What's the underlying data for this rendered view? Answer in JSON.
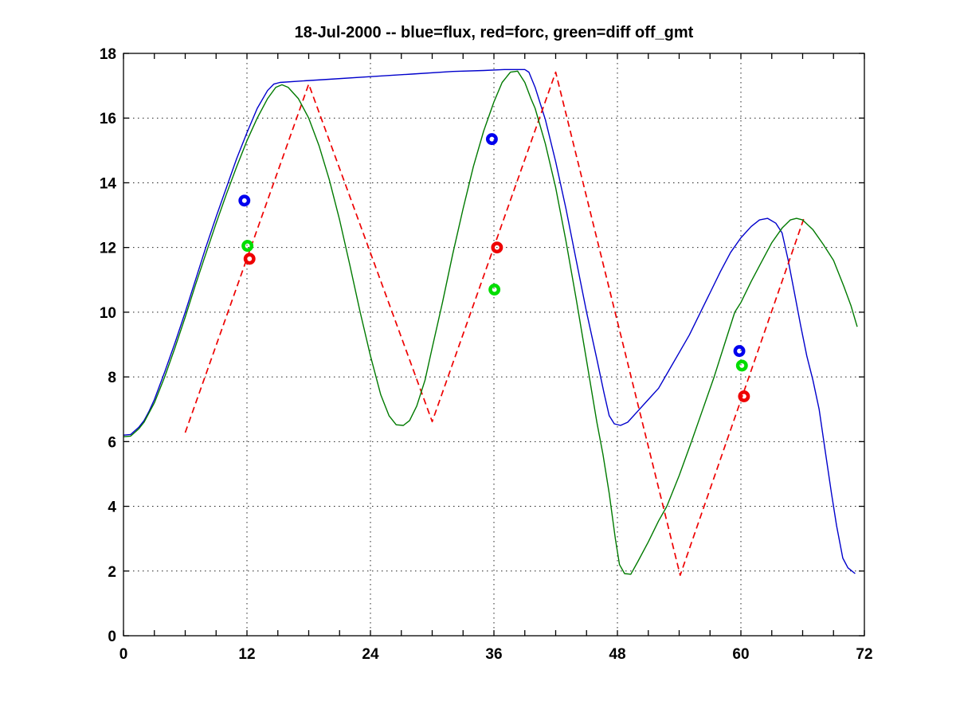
{
  "chart_data": {
    "type": "line",
    "title": "18-Jul-2000 -- blue=flux, red=forc, green=diff off_gmt",
    "xlabel": "",
    "ylabel": "",
    "xlim": [
      0,
      72
    ],
    "ylim": [
      0,
      18
    ],
    "x_major_ticks": [
      0,
      12,
      24,
      36,
      48,
      60,
      72
    ],
    "x_minor_step": 3,
    "y_ticks": [
      0,
      2,
      4,
      6,
      8,
      10,
      12,
      14,
      16,
      18
    ],
    "grid": "dotted-at-major-ticks",
    "legend_position": "encoded-in-title",
    "axis_color": "#000000",
    "grid_color": "#222222",
    "background_color": "#ffffff",
    "series": [
      {
        "name": "flux",
        "color": "#0000cc",
        "line_style": "solid",
        "points": [
          [
            0,
            6.2
          ],
          [
            0.7,
            6.22
          ],
          [
            1.5,
            6.45
          ],
          [
            2,
            6.65
          ],
          [
            2.5,
            6.95
          ],
          [
            3,
            7.3
          ],
          [
            4,
            8.15
          ],
          [
            5,
            9.05
          ],
          [
            6,
            10
          ],
          [
            7,
            11
          ],
          [
            8,
            12
          ],
          [
            9,
            12.95
          ],
          [
            10,
            13.85
          ],
          [
            11,
            14.75
          ],
          [
            12,
            15.55
          ],
          [
            13,
            16.3
          ],
          [
            14,
            16.85
          ],
          [
            14.6,
            17.05
          ],
          [
            15.2,
            17.1
          ],
          [
            17,
            17.14
          ],
          [
            20,
            17.2
          ],
          [
            24,
            17.28
          ],
          [
            28,
            17.36
          ],
          [
            32,
            17.44
          ],
          [
            35,
            17.47
          ],
          [
            37,
            17.5
          ],
          [
            39,
            17.5
          ],
          [
            39.4,
            17.42
          ],
          [
            40,
            16.95
          ],
          [
            41,
            15.95
          ],
          [
            42,
            14.65
          ],
          [
            43,
            13.2
          ],
          [
            44,
            11.6
          ],
          [
            45,
            10
          ],
          [
            46,
            8.55
          ],
          [
            46.7,
            7.5
          ],
          [
            47.2,
            6.8
          ],
          [
            47.7,
            6.55
          ],
          [
            48.3,
            6.5
          ],
          [
            49,
            6.6
          ],
          [
            50,
            6.95
          ],
          [
            51,
            7.3
          ],
          [
            52,
            7.65
          ],
          [
            53,
            8.2
          ],
          [
            54,
            8.75
          ],
          [
            55,
            9.3
          ],
          [
            56,
            9.95
          ],
          [
            57,
            10.6
          ],
          [
            58,
            11.25
          ],
          [
            59,
            11.85
          ],
          [
            60,
            12.3
          ],
          [
            61,
            12.65
          ],
          [
            61.8,
            12.85
          ],
          [
            62.6,
            12.9
          ],
          [
            63.4,
            12.75
          ],
          [
            64,
            12.45
          ],
          [
            64.6,
            11.6
          ],
          [
            65.2,
            10.6
          ],
          [
            65.8,
            9.6
          ],
          [
            66.4,
            8.65
          ],
          [
            67,
            7.9
          ],
          [
            67.6,
            7
          ],
          [
            68.2,
            5.7
          ],
          [
            68.8,
            4.4
          ],
          [
            69.3,
            3.4
          ],
          [
            69.9,
            2.4
          ],
          [
            70.4,
            2.1
          ],
          [
            71.1,
            1.92
          ]
        ]
      },
      {
        "name": "forc",
        "color": "#ee0000",
        "line_style": "dashed",
        "points": [
          [
            6,
            6.28
          ],
          [
            18,
            17.05
          ],
          [
            30,
            6.62
          ],
          [
            42,
            17.42
          ],
          [
            54.1,
            1.87
          ],
          [
            66.1,
            12.88
          ]
        ]
      },
      {
        "name": "diff",
        "color": "#007a00",
        "line_style": "solid",
        "points": [
          [
            0,
            6.15
          ],
          [
            0.7,
            6.17
          ],
          [
            1.5,
            6.4
          ],
          [
            2,
            6.6
          ],
          [
            3,
            7.2
          ],
          [
            4,
            8
          ],
          [
            5,
            8.9
          ],
          [
            6,
            9.85
          ],
          [
            7,
            10.85
          ],
          [
            8,
            11.8
          ],
          [
            9,
            12.75
          ],
          [
            10,
            13.65
          ],
          [
            11,
            14.5
          ],
          [
            12,
            15.3
          ],
          [
            13,
            16
          ],
          [
            14,
            16.6
          ],
          [
            14.8,
            16.95
          ],
          [
            15.4,
            17.03
          ],
          [
            16,
            16.95
          ],
          [
            17,
            16.6
          ],
          [
            18,
            16
          ],
          [
            19,
            15.15
          ],
          [
            20,
            14.1
          ],
          [
            21,
            12.85
          ],
          [
            22,
            11.45
          ],
          [
            23,
            10
          ],
          [
            24,
            8.65
          ],
          [
            25,
            7.45
          ],
          [
            25.8,
            6.8
          ],
          [
            26.5,
            6.52
          ],
          [
            27.2,
            6.5
          ],
          [
            27.8,
            6.65
          ],
          [
            28.5,
            7.1
          ],
          [
            29.3,
            7.9
          ],
          [
            30,
            8.9
          ],
          [
            31,
            10.3
          ],
          [
            32,
            11.8
          ],
          [
            33,
            13.2
          ],
          [
            34,
            14.5
          ],
          [
            35,
            15.6
          ],
          [
            36,
            16.5
          ],
          [
            36.8,
            17.1
          ],
          [
            37.6,
            17.42
          ],
          [
            38.3,
            17.45
          ],
          [
            39,
            17.1
          ],
          [
            39.6,
            16.6
          ],
          [
            40,
            16.3
          ],
          [
            41,
            15.2
          ],
          [
            42,
            13.85
          ],
          [
            43,
            12.2
          ],
          [
            44,
            10.4
          ],
          [
            45,
            8.5
          ],
          [
            46,
            6.6
          ],
          [
            46.6,
            5.6
          ],
          [
            47.2,
            4.4
          ],
          [
            47.8,
            3
          ],
          [
            48.2,
            2.2
          ],
          [
            48.7,
            1.92
          ],
          [
            49.3,
            1.9
          ],
          [
            50,
            2.3
          ],
          [
            51,
            2.9
          ],
          [
            52,
            3.55
          ],
          [
            52.8,
            4
          ],
          [
            54,
            4.95
          ],
          [
            55.2,
            6
          ],
          [
            56.3,
            7
          ],
          [
            57.4,
            8
          ],
          [
            58.4,
            9
          ],
          [
            59.4,
            10
          ],
          [
            60,
            10.3
          ],
          [
            61,
            10.95
          ],
          [
            62,
            11.55
          ],
          [
            63,
            12.15
          ],
          [
            64,
            12.6
          ],
          [
            64.8,
            12.85
          ],
          [
            65.4,
            12.9
          ],
          [
            66,
            12.85
          ],
          [
            67,
            12.55
          ],
          [
            68,
            12.1
          ],
          [
            69,
            11.6
          ],
          [
            70,
            10.8
          ],
          [
            70.7,
            10.2
          ],
          [
            71.3,
            9.55
          ]
        ]
      }
    ],
    "marker_series": [
      {
        "name": "flux-obs",
        "color": "#0000ee",
        "marker": "o",
        "points": [
          [
            11.75,
            13.45
          ],
          [
            35.8,
            15.35
          ],
          [
            59.85,
            8.8
          ]
        ]
      },
      {
        "name": "forc-obs",
        "color": "#ee0000",
        "marker": "o",
        "points": [
          [
            12.25,
            11.65
          ],
          [
            36.3,
            12
          ],
          [
            60.3,
            7.4
          ]
        ]
      },
      {
        "name": "diff-obs",
        "color": "#00dd00",
        "marker": "o",
        "points": [
          [
            12.05,
            12.05
          ],
          [
            36.05,
            10.7
          ],
          [
            60.1,
            8.35
          ]
        ]
      }
    ]
  }
}
